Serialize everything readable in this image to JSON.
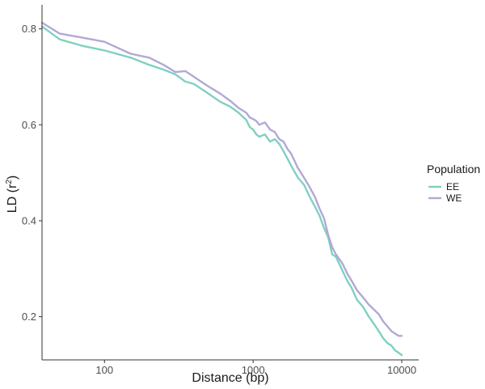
{
  "chart_data": {
    "type": "line",
    "xscale": "log",
    "xlabel": "Distance (bp)",
    "ylabel": "LD (r",
    "ylabel_superscript": "2",
    "ylabel_suffix": ")",
    "xlim": [
      38,
      13000
    ],
    "ylim": [
      0.11,
      0.85
    ],
    "xticks": [
      100,
      1000,
      10000
    ],
    "xtick_labels": [
      "100",
      "1000",
      "10000"
    ],
    "yticks": [
      0.2,
      0.4,
      0.6,
      0.8
    ],
    "ytick_labels": [
      "0.2",
      "0.4",
      "0.6",
      "0.8"
    ],
    "grid": false,
    "legend": {
      "title": "Population",
      "position": "right"
    },
    "series": [
      {
        "name": "EE",
        "color": "#7fd1c1",
        "x": [
          38,
          50,
          70,
          100,
          150,
          200,
          250,
          300,
          350,
          400,
          500,
          600,
          700,
          800,
          900,
          950,
          1000,
          1050,
          1100,
          1200,
          1300,
          1400,
          1500,
          1600,
          1700,
          1800,
          2000,
          2200,
          2400,
          2600,
          2800,
          3000,
          3200,
          3400,
          3600,
          3800,
          4000,
          4300,
          4600,
          5000,
          5500,
          6000,
          6500,
          7000,
          7500,
          8000,
          8500,
          9000,
          9500,
          10000
        ],
        "y": [
          0.805,
          0.778,
          0.765,
          0.755,
          0.74,
          0.725,
          0.715,
          0.705,
          0.69,
          0.685,
          0.665,
          0.648,
          0.638,
          0.625,
          0.61,
          0.595,
          0.59,
          0.58,
          0.575,
          0.58,
          0.565,
          0.57,
          0.56,
          0.545,
          0.53,
          0.515,
          0.49,
          0.475,
          0.45,
          0.43,
          0.41,
          0.385,
          0.365,
          0.33,
          0.325,
          0.31,
          0.295,
          0.275,
          0.26,
          0.235,
          0.22,
          0.2,
          0.185,
          0.17,
          0.155,
          0.145,
          0.14,
          0.13,
          0.125,
          0.12
        ]
      },
      {
        "name": "WE",
        "color": "#b2a8d6",
        "x": [
          38,
          50,
          70,
          100,
          150,
          200,
          250,
          300,
          350,
          400,
          500,
          600,
          700,
          800,
          900,
          950,
          1000,
          1050,
          1100,
          1200,
          1300,
          1400,
          1500,
          1600,
          1700,
          1800,
          2000,
          2200,
          2400,
          2600,
          2800,
          3000,
          3200,
          3400,
          3600,
          3800,
          4000,
          4300,
          4600,
          5000,
          5500,
          6000,
          6500,
          7000,
          7500,
          8000,
          8500,
          9000,
          9500,
          10000
        ],
        "y": [
          0.813,
          0.79,
          0.782,
          0.773,
          0.748,
          0.74,
          0.725,
          0.71,
          0.712,
          0.7,
          0.68,
          0.665,
          0.65,
          0.635,
          0.625,
          0.615,
          0.612,
          0.608,
          0.6,
          0.605,
          0.59,
          0.585,
          0.57,
          0.565,
          0.55,
          0.54,
          0.51,
          0.49,
          0.47,
          0.45,
          0.425,
          0.405,
          0.37,
          0.345,
          0.33,
          0.32,
          0.31,
          0.29,
          0.275,
          0.255,
          0.24,
          0.225,
          0.215,
          0.205,
          0.19,
          0.18,
          0.17,
          0.165,
          0.16,
          0.16
        ]
      }
    ]
  }
}
